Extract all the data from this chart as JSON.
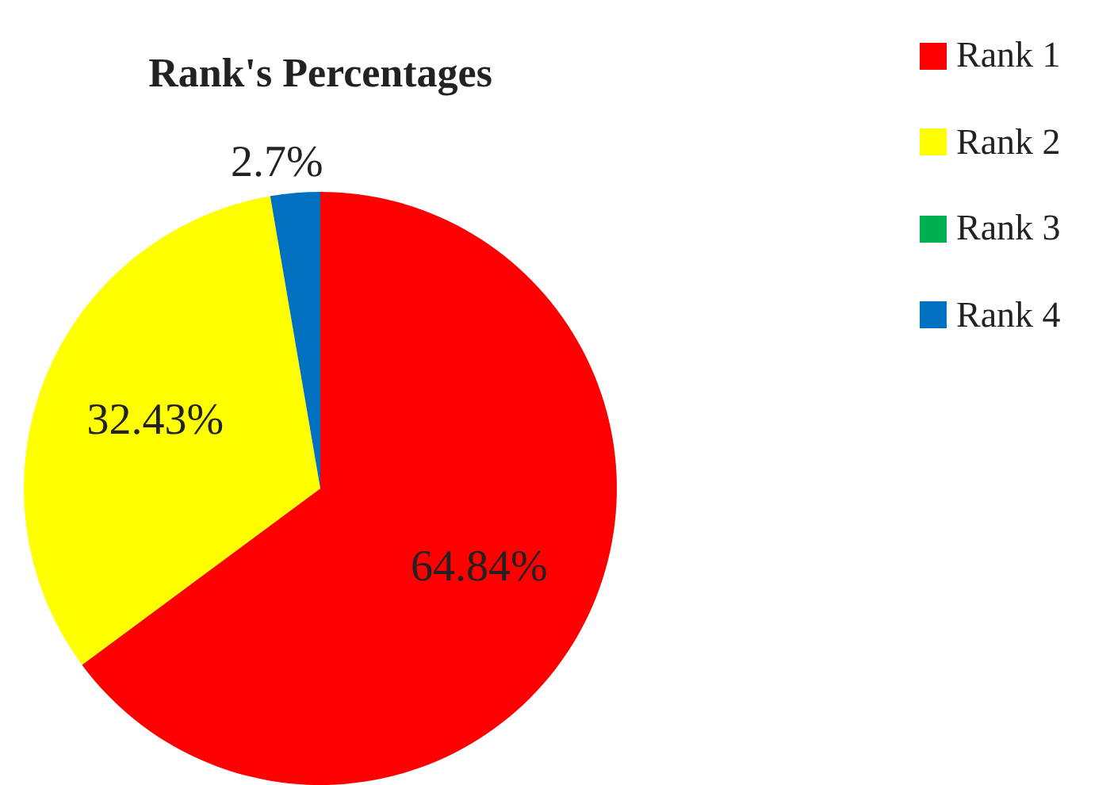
{
  "chart_data": {
    "type": "pie",
    "title": "Rank's Percentages",
    "categories": [
      "Rank 1",
      "Rank 2",
      "Rank 3",
      "Rank 4"
    ],
    "values": [
      64.84,
      32.43,
      0,
      2.7
    ],
    "colors": [
      "#ff0000",
      "#ffff00",
      "#00b050",
      "#0070c0"
    ],
    "value_labels": [
      "64.84%",
      "32.43%",
      null,
      "2.7%"
    ],
    "legend": "top right"
  }
}
